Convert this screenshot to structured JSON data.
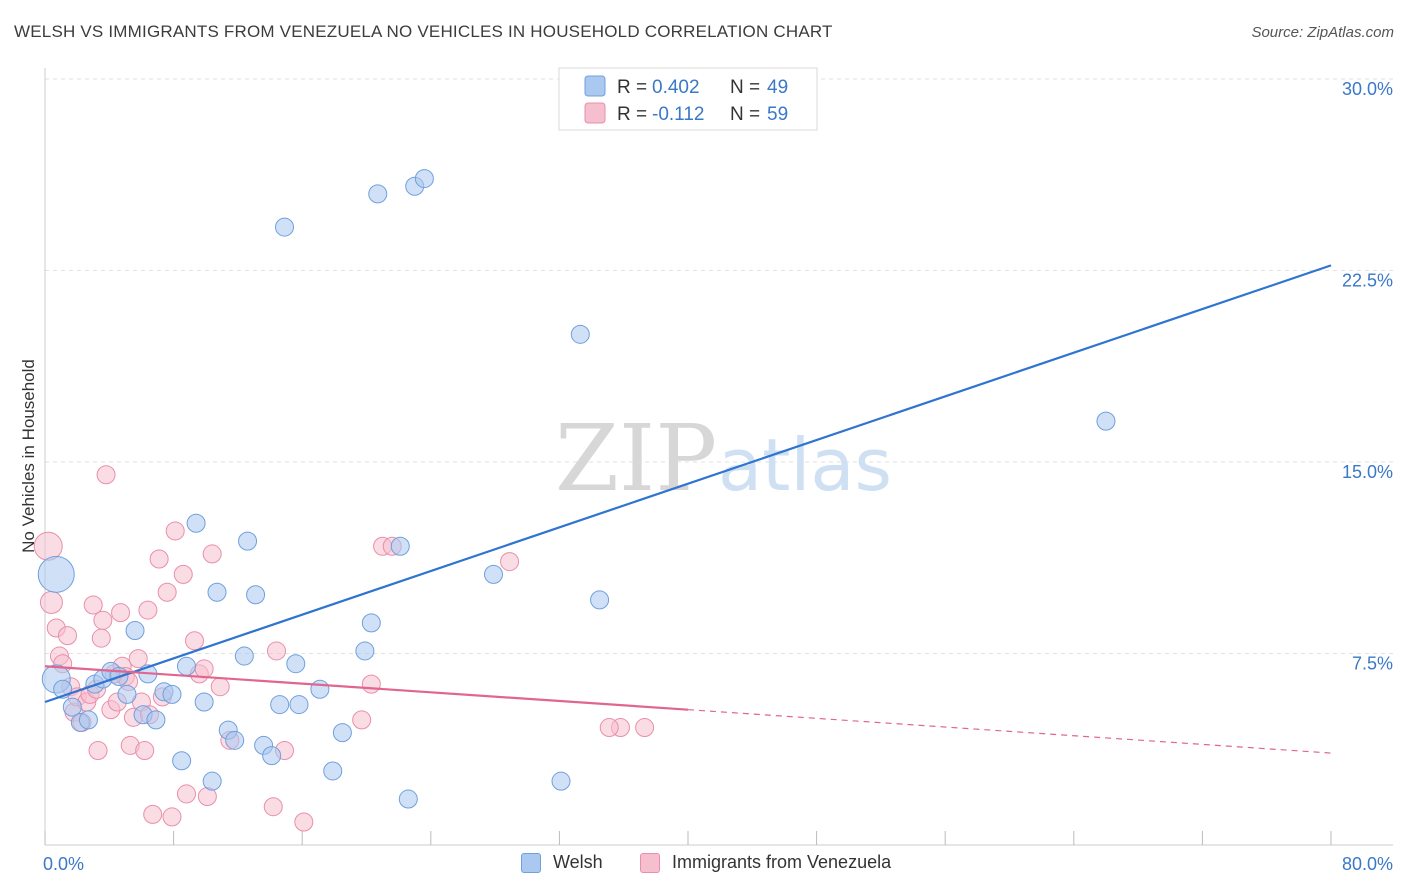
{
  "header": {
    "title": "WELSH VS IMMIGRANTS FROM VENEZUELA NO VEHICLES IN HOUSEHOLD CORRELATION CHART",
    "source": "Source: ZipAtlas.com"
  },
  "watermark": {
    "zip": "ZIP",
    "atlas": "atlas"
  },
  "colors": {
    "welsh_fill": "#aac8f0",
    "welsh_stroke": "#6fa0dd",
    "welsh_line": "#2e74d0",
    "venezuela_fill": "#f6bfd0",
    "venezuela_stroke": "#e98fab",
    "venezuela_line": "#e0668f",
    "axis_label": "#3a78c8",
    "grid": "#e2e2e2"
  },
  "stats_legend": {
    "rows": [
      {
        "r_label": "R = ",
        "r_value": "0.402",
        "n_label": "N = ",
        "n_value": "49"
      },
      {
        "r_label": "R = ",
        "r_value": "-0.112",
        "n_label": "N = ",
        "n_value": "59"
      }
    ]
  },
  "chart_data": {
    "type": "scatter",
    "title": "WELSH VS IMMIGRANTS FROM VENEZUELA NO VEHICLES IN HOUSEHOLD CORRELATION CHART",
    "xlabel": "",
    "ylabel": "No Vehicles in Household",
    "xlim": [
      0,
      80
    ],
    "ylim": [
      0,
      30
    ],
    "x_tick_labels": [
      "0.0%",
      "80.0%"
    ],
    "y_ticks": [
      7.5,
      15.0,
      22.5,
      30.0
    ],
    "y_tick_labels": [
      "7.5%",
      "15.0%",
      "22.5%",
      "30.0%"
    ],
    "grid": true,
    "legend_position": "top-center",
    "series": [
      {
        "name": "Welsh",
        "r": 0.402,
        "n": 49,
        "trend": {
          "x": [
            0,
            80
          ],
          "y": [
            5.6,
            22.7
          ],
          "dashed_from_x": null
        },
        "points": [
          [
            0.7,
            10.6,
            18
          ],
          [
            0.7,
            6.5,
            14
          ],
          [
            1.1,
            6.1,
            9
          ],
          [
            1.7,
            5.4,
            9
          ],
          [
            2.2,
            4.8,
            9
          ],
          [
            2.7,
            4.9,
            9
          ],
          [
            3.1,
            6.3,
            9
          ],
          [
            3.6,
            6.5,
            9
          ],
          [
            4.1,
            6.8,
            9
          ],
          [
            4.6,
            6.6,
            9
          ],
          [
            5.1,
            5.9,
            9
          ],
          [
            5.6,
            8.4,
            9
          ],
          [
            6.1,
            5.1,
            9
          ],
          [
            6.4,
            6.7,
            9
          ],
          [
            6.9,
            4.9,
            9
          ],
          [
            7.4,
            6.0,
            9
          ],
          [
            7.9,
            5.9,
            9
          ],
          [
            8.5,
            3.3,
            9
          ],
          [
            8.8,
            7.0,
            9
          ],
          [
            9.4,
            12.6,
            9
          ],
          [
            9.9,
            5.6,
            9
          ],
          [
            10.4,
            2.5,
            9
          ],
          [
            10.7,
            9.9,
            9
          ],
          [
            11.4,
            4.5,
            9
          ],
          [
            11.8,
            4.1,
            9
          ],
          [
            12.4,
            7.4,
            9
          ],
          [
            12.6,
            11.9,
            9
          ],
          [
            13.1,
            9.8,
            9
          ],
          [
            13.6,
            3.9,
            9
          ],
          [
            14.1,
            3.5,
            9
          ],
          [
            14.6,
            5.5,
            9
          ],
          [
            14.9,
            24.2,
            9
          ],
          [
            15.6,
            7.1,
            9
          ],
          [
            15.8,
            5.5,
            9
          ],
          [
            17.1,
            6.1,
            9
          ],
          [
            17.9,
            2.9,
            9
          ],
          [
            18.5,
            4.4,
            9
          ],
          [
            19.9,
            7.6,
            9
          ],
          [
            20.3,
            8.7,
            9
          ],
          [
            20.7,
            25.5,
            9
          ],
          [
            22.1,
            11.7,
            9
          ],
          [
            22.6,
            1.8,
            9
          ],
          [
            23.0,
            25.8,
            9
          ],
          [
            23.6,
            26.1,
            9
          ],
          [
            27.9,
            10.6,
            9
          ],
          [
            32.1,
            2.5,
            9
          ],
          [
            33.3,
            20.0,
            9
          ],
          [
            34.5,
            9.6,
            9
          ],
          [
            66.0,
            16.6,
            9
          ]
        ]
      },
      {
        "name": "Immigrants from Venezuela",
        "r": -0.112,
        "n": 59,
        "trend": {
          "x": [
            0,
            80
          ],
          "y": [
            7.0,
            3.6
          ],
          "dashed_from_x": 40
        },
        "points": [
          [
            0.2,
            11.7,
            14
          ],
          [
            0.4,
            9.5,
            11
          ],
          [
            0.7,
            8.5,
            9
          ],
          [
            0.9,
            7.4,
            9
          ],
          [
            1.1,
            7.1,
            9
          ],
          [
            1.4,
            8.2,
            9
          ],
          [
            1.6,
            6.2,
            9
          ],
          [
            1.8,
            5.2,
            9
          ],
          [
            2.0,
            5.8,
            9
          ],
          [
            2.3,
            4.8,
            9
          ],
          [
            2.6,
            5.6,
            9
          ],
          [
            2.8,
            5.9,
            9
          ],
          [
            3.0,
            9.4,
            9
          ],
          [
            3.2,
            6.1,
            9
          ],
          [
            3.3,
            3.7,
            9
          ],
          [
            3.5,
            8.1,
            9
          ],
          [
            3.6,
            8.8,
            9
          ],
          [
            3.8,
            14.5,
            9
          ],
          [
            4.1,
            5.3,
            9
          ],
          [
            4.3,
            6.7,
            9
          ],
          [
            4.5,
            5.6,
            9
          ],
          [
            4.7,
            9.1,
            9
          ],
          [
            4.8,
            7.0,
            9
          ],
          [
            5.0,
            6.6,
            9
          ],
          [
            5.2,
            6.4,
            9
          ],
          [
            5.3,
            3.9,
            9
          ],
          [
            5.5,
            5.0,
            9
          ],
          [
            5.8,
            7.3,
            9
          ],
          [
            6.0,
            5.6,
            9
          ],
          [
            6.2,
            3.7,
            9
          ],
          [
            6.4,
            9.2,
            9
          ],
          [
            6.5,
            5.1,
            9
          ],
          [
            6.7,
            1.2,
            9
          ],
          [
            7.1,
            11.2,
            9
          ],
          [
            7.3,
            5.8,
            9
          ],
          [
            7.6,
            9.9,
            9
          ],
          [
            7.9,
            1.1,
            9
          ],
          [
            8.1,
            12.3,
            9
          ],
          [
            8.6,
            10.6,
            9
          ],
          [
            8.8,
            2.0,
            9
          ],
          [
            9.3,
            8.0,
            9
          ],
          [
            9.6,
            6.7,
            9
          ],
          [
            9.9,
            6.9,
            9
          ],
          [
            10.1,
            1.9,
            9
          ],
          [
            10.4,
            11.4,
            9
          ],
          [
            10.9,
            6.2,
            9
          ],
          [
            11.5,
            4.1,
            9
          ],
          [
            14.2,
            1.5,
            9
          ],
          [
            14.4,
            7.6,
            9
          ],
          [
            14.9,
            3.7,
            9
          ],
          [
            16.1,
            0.9,
            9
          ],
          [
            19.7,
            4.9,
            9
          ],
          [
            20.3,
            6.3,
            9
          ],
          [
            21.0,
            11.7,
            9
          ],
          [
            21.6,
            11.7,
            9
          ],
          [
            28.9,
            11.1,
            9
          ],
          [
            35.8,
            4.6,
            9
          ],
          [
            37.3,
            4.6,
            9
          ],
          [
            35.1,
            4.6,
            9
          ]
        ]
      }
    ]
  },
  "bottom_legend": {
    "items": [
      {
        "label": "Welsh"
      },
      {
        "label": "Immigrants from Venezuela"
      }
    ]
  }
}
